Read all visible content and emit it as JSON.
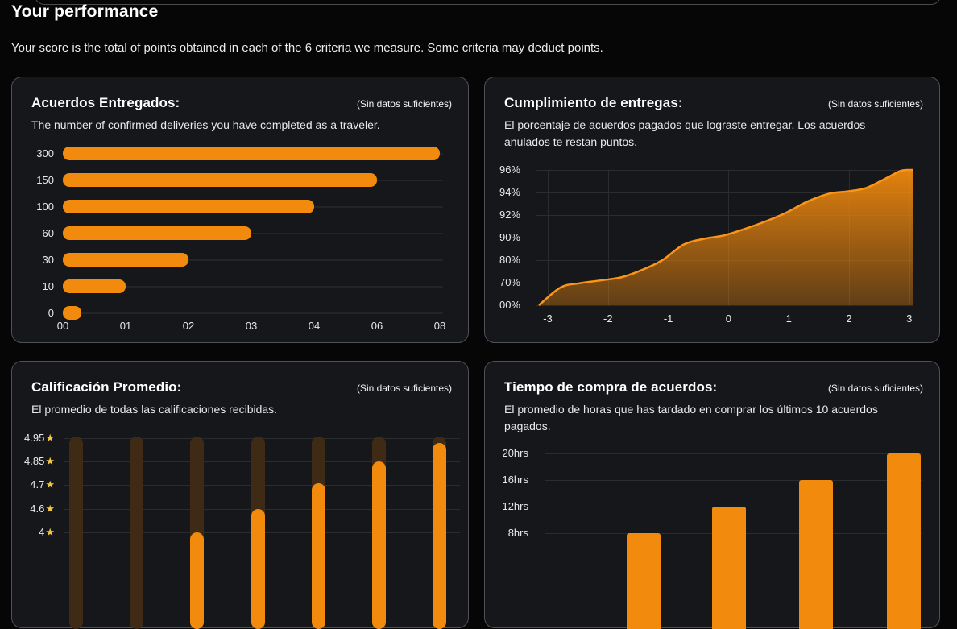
{
  "page": {
    "title": "Your performance",
    "subtitle": "Your score is the total of points obtained in each of the 6 criteria we measure. Some criteria may deduct points."
  },
  "colors": {
    "accent_orange": "#F28A0D",
    "area_line_orange": "#FC9517",
    "track_brown": "#3E2A15",
    "star_gold": "#F2C73E",
    "card_background": "#16171B",
    "card_border": "#505156",
    "grid_line": "#2B2C30",
    "page_background": "#060607"
  },
  "cards": [
    {
      "title": "Acuerdos Entregados:",
      "badge": "(Sin datos suficientes)",
      "description": "The number of confirmed deliveries you have completed as a traveler.",
      "chart_data": {
        "type": "bar",
        "orientation": "horizontal",
        "categories": [
          "300",
          "150",
          "100",
          "60",
          "30",
          "10",
          "0"
        ],
        "x_tick_labels": [
          "00",
          "01",
          "02",
          "03",
          "04",
          "06",
          "08"
        ],
        "values_in_tick_units": [
          6,
          5,
          4,
          3,
          2,
          1,
          0.3
        ],
        "note": "bar length measured in x-axis tick units; x axis is non-linear (00,01,02,03,04,06,08)"
      }
    },
    {
      "title": "Cumplimiento de entregas:",
      "badge": "(Sin datos suficientes)",
      "description": "El porcentaje de acuerdos pagados que lograste entregar. Los acuerdos anulados te restan puntos.",
      "chart_data": {
        "type": "area",
        "x_ticks": [
          "-3",
          "-2",
          "-1",
          "0",
          "1",
          "2",
          "3"
        ],
        "y_tick_labels": [
          "96%",
          "94%",
          "92%",
          "90%",
          "80%",
          "70%",
          "00%"
        ],
        "y_tick_values": [
          96,
          94,
          92,
          90,
          80,
          70,
          0
        ],
        "points": [
          [
            -3,
            0
          ],
          [
            -2.65,
            55
          ],
          [
            -2.35,
            68
          ],
          [
            -2,
            71
          ],
          [
            -1.65,
            72.5
          ],
          [
            -1.3,
            76
          ],
          [
            -1,
            80
          ],
          [
            -0.65,
            87
          ],
          [
            -0.3,
            89.6
          ],
          [
            0,
            90.2
          ],
          [
            0.35,
            90.8
          ],
          [
            0.7,
            91.5
          ],
          [
            1,
            92.2
          ],
          [
            1.35,
            93.2
          ],
          [
            1.7,
            93.9
          ],
          [
            2,
            94.1
          ],
          [
            2.3,
            94.4
          ],
          [
            2.6,
            95.2
          ],
          [
            2.85,
            95.9
          ],
          [
            3,
            96
          ]
        ],
        "note": "smooth rising curve: ~0% at -3, ~70% at -2, ~80% at -1, ~90% at 0, ~92% at 1, ~94% at 2, 96% at 3; y axis non-linear"
      }
    },
    {
      "title": "Calificación Promedio:",
      "badge": "(Sin datos suficientes)",
      "description": "El promedio de todas las calificaciones recibidas.",
      "chart_data": {
        "type": "bar",
        "style": "lollipop-with-track",
        "orientation": "vertical",
        "y_tick_labels": [
          "4.95",
          "4.85",
          "4.7",
          "4.6",
          "4"
        ],
        "y_tick_values": [
          4.95,
          4.85,
          4.7,
          4.6,
          4
        ],
        "star_suffix": "★",
        "columns": 7,
        "values": [
          null,
          null,
          4,
          4.6,
          4.71,
          4.85,
          4.93
        ],
        "note": "7 dark-brown track pills reaching 4.95; orange pills visible on columns 3-7, columns 1-2 cut off below viewport"
      }
    },
    {
      "title": "Tiempo de compra de acuerdos:",
      "badge": "(Sin datos suficientes)",
      "description": "El promedio de horas que has tardado en comprar los últimos 10 acuerdos pagados.",
      "chart_data": {
        "type": "bar",
        "orientation": "vertical",
        "y_tick_labels": [
          "20hrs",
          "16hrs",
          "12hrs",
          "8hrs"
        ],
        "y_tick_values": [
          20,
          16,
          12,
          8
        ],
        "columns": 5,
        "values": [
          null,
          8,
          12,
          16,
          20
        ],
        "note": "bars rise left to right; first slot not visible above the viewport fold"
      }
    }
  ]
}
